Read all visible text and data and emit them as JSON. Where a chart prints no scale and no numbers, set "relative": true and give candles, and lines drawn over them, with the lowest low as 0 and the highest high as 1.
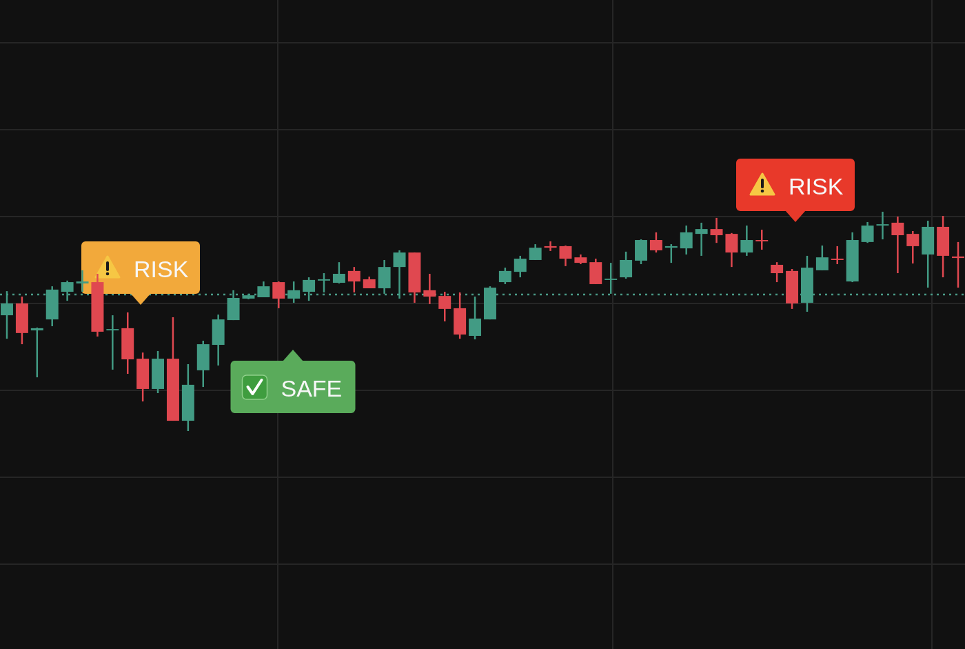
{
  "chart_data": {
    "type": "candlestick",
    "relative": true,
    "categories": [
      null,
      null,
      null,
      null,
      null,
      null,
      null,
      null,
      null,
      null,
      null,
      null,
      null,
      null,
      null,
      null,
      null,
      null,
      null,
      null,
      null,
      null,
      null,
      null,
      null,
      null,
      null,
      null,
      null,
      null,
      null,
      null,
      null,
      null,
      null,
      null,
      null,
      null,
      null,
      null,
      null,
      null,
      null,
      null,
      null,
      null,
      null,
      null,
      null,
      null,
      null,
      null,
      null,
      null,
      null,
      null,
      null,
      null,
      null,
      null,
      null,
      null,
      null,
      null
    ],
    "ohlc": [
      [
        0.528,
        0.638,
        0.421,
        0.582
      ],
      [
        0.582,
        0.613,
        0.396,
        0.447
      ],
      [
        0.459,
        0.472,
        0.245,
        0.469
      ],
      [
        0.509,
        0.66,
        0.478,
        0.645
      ],
      [
        0.635,
        0.686,
        0.594,
        0.679
      ],
      [
        0.673,
        0.733,
        0.635,
        0.682
      ],
      [
        0.679,
        0.717,
        0.431,
        0.453
      ],
      [
        0.459,
        0.528,
        0.28,
        0.465
      ],
      [
        0.469,
        0.541,
        0.261,
        0.327
      ],
      [
        0.33,
        0.358,
        0.135,
        0.192
      ],
      [
        0.192,
        0.365,
        0.173,
        0.33
      ],
      [
        0.33,
        0.519,
        0.047,
        0.047
      ],
      [
        0.047,
        0.305,
        0,
        0.211
      ],
      [
        0.277,
        0.412,
        0.201,
        0.396
      ],
      [
        0.393,
        0.531,
        0.299,
        0.509
      ],
      [
        0.506,
        0.642,
        0.506,
        0.607
      ],
      [
        0.604,
        0.626,
        0.601,
        0.619
      ],
      [
        0.61,
        0.682,
        0.61,
        0.66
      ],
      [
        0.679,
        0.682,
        0.56,
        0.604
      ],
      [
        0.604,
        0.682,
        0.585,
        0.642
      ],
      [
        0.635,
        0.701,
        0.594,
        0.689
      ],
      [
        0.686,
        0.72,
        0.632,
        0.692
      ],
      [
        0.676,
        0.77,
        0.673,
        0.717
      ],
      [
        0.73,
        0.748,
        0.632,
        0.682
      ],
      [
        0.692,
        0.704,
        0.651,
        0.651
      ],
      [
        0.651,
        0.78,
        0.626,
        0.748
      ],
      [
        0.748,
        0.824,
        0.604,
        0.814
      ],
      [
        0.814,
        0.814,
        0.585,
        0.632
      ],
      [
        0.642,
        0.717,
        0.579,
        0.613
      ],
      [
        0.616,
        0.635,
        0.5,
        0.557
      ],
      [
        0.56,
        0.632,
        0.421,
        0.44
      ],
      [
        0.434,
        0.613,
        0.418,
        0.513
      ],
      [
        0.509,
        0.66,
        0.509,
        0.654
      ],
      [
        0.679,
        0.745,
        0.67,
        0.73
      ],
      [
        0.726,
        0.799,
        0.701,
        0.786
      ],
      [
        0.78,
        0.852,
        0.78,
        0.836
      ],
      [
        0.843,
        0.865,
        0.821,
        0.836
      ],
      [
        0.843,
        0.846,
        0.752,
        0.786
      ],
      [
        0.792,
        0.805,
        0.761,
        0.767
      ],
      [
        0.77,
        0.786,
        0.67,
        0.67
      ],
      [
        0.689,
        0.767,
        0.626,
        0.695
      ],
      [
        0.701,
        0.818,
        0.695,
        0.78
      ],
      [
        0.777,
        0.874,
        0.761,
        0.871
      ],
      [
        0.871,
        0.906,
        0.814,
        0.824
      ],
      [
        0.836,
        0.852,
        0.767,
        0.843
      ],
      [
        0.833,
        0.937,
        0.805,
        0.906
      ],
      [
        0.899,
        0.95,
        0.799,
        0.921
      ],
      [
        0.921,
        0.972,
        0.858,
        0.893
      ],
      [
        0.899,
        0.903,
        0.748,
        0.814
      ],
      [
        0.814,
        0.937,
        0.799,
        0.871
      ],
      [
        0.871,
        0.918,
        0.827,
        0.865
      ],
      [
        0.758,
        0.77,
        0.679,
        0.72
      ],
      [
        0.73,
        0.739,
        0.557,
        0.582
      ],
      [
        0.585,
        0.799,
        0.544,
        0.745
      ],
      [
        0.733,
        0.846,
        0.733,
        0.792
      ],
      [
        0.786,
        0.843,
        0.761,
        0.78
      ],
      [
        0.682,
        0.906,
        0.679,
        0.871
      ],
      [
        0.862,
        0.953,
        0.858,
        0.937
      ],
      [
        0.937,
        1,
        0.874,
        0.943
      ],
      [
        0.95,
        0.978,
        0.72,
        0.893
      ],
      [
        0.899,
        0.912,
        0.764,
        0.843
      ],
      [
        0.805,
        0.959,
        0.654,
        0.931
      ],
      [
        0.931,
        0.981,
        0.701,
        0.799
      ],
      [
        0.796,
        0.862,
        0.654,
        0.789
      ]
    ],
    "colors": [
      "#429b84",
      "#e04850",
      "#429b84",
      "#429b84",
      "#429b84",
      "#429b84",
      "#e04850",
      "#429b84",
      "#e04850",
      "#e04850",
      "#429b84",
      "#e04850",
      "#429b84",
      "#429b84",
      "#429b84",
      "#429b84",
      "#429b84",
      "#429b84",
      "#e04850",
      "#429b84",
      "#429b84",
      "#429b84",
      "#429b84",
      "#e04850",
      "#e04850",
      "#429b84",
      "#429b84",
      "#e04850",
      "#e04850",
      "#e04850",
      "#e04850",
      "#429b84",
      "#429b84",
      "#429b84",
      "#429b84",
      "#429b84",
      "#e04850",
      "#e04850",
      "#e04850",
      "#e04850",
      "#429b84",
      "#429b84",
      "#429b84",
      "#e04850",
      "#429b84",
      "#429b84",
      "#429b84",
      "#e04850",
      "#e04850",
      "#429b84",
      "#e04850",
      "#e04850",
      "#e04850",
      "#429b84",
      "#429b84",
      "#e04850",
      "#429b84",
      "#429b84",
      "#429b84",
      "#e04850",
      "#e04850",
      "#429b84",
      "#e04850",
      "#e04850"
    ],
    "grid": true,
    "ref_lines": [
      {
        "axis": "y",
        "value": 0.623,
        "color": "#4a9a88",
        "line_style": "dotted"
      }
    ],
    "annotations": [
      "RISK",
      "SAFE",
      "RISK"
    ]
  }
}
